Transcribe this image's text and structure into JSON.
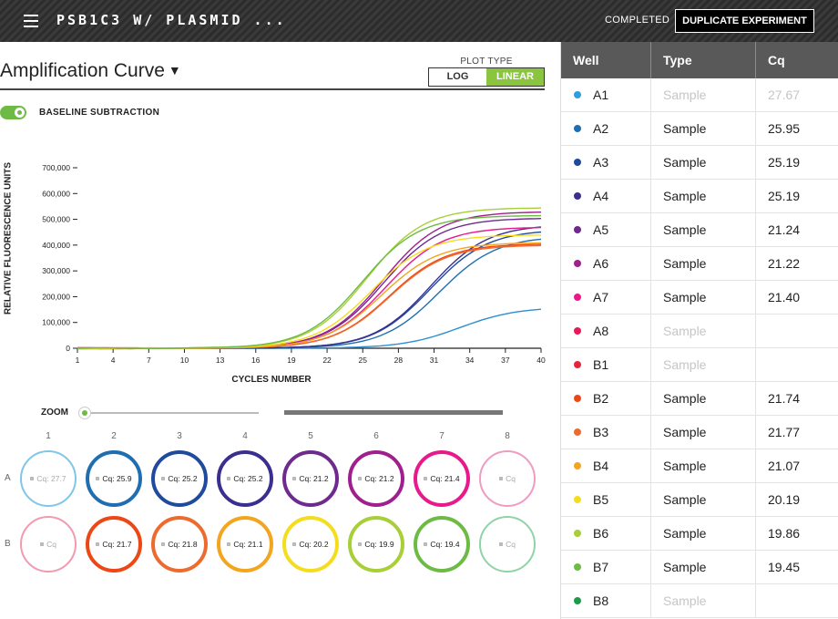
{
  "header": {
    "title": "PSB1C3 W/ PLASMID ...",
    "status": "COMPLETED",
    "duplicate_label": "DUPLICATE EXPERIMENT"
  },
  "chart_header": {
    "title": "Amplification Curve",
    "plot_type_label": "PLOT TYPE",
    "plot_options": [
      "LOG",
      "LINEAR"
    ],
    "selected_plot": "LINEAR",
    "baseline_label": "BASELINE SUBTRACTION",
    "baseline_on": true
  },
  "chart_data": {
    "type": "line",
    "title": "",
    "xlabel": "CYCLES NUMBER",
    "ylabel": "RELATIVE FLUORESCENCE UNITS",
    "xlim": [
      1,
      40
    ],
    "ylim": [
      0,
      700000
    ],
    "x_ticks": [
      1,
      4,
      7,
      10,
      13,
      16,
      19,
      22,
      25,
      28,
      31,
      34,
      37,
      40
    ],
    "y_ticks": [
      0,
      100000,
      200000,
      300000,
      400000,
      500000,
      600000,
      700000
    ],
    "y_tick_labels": [
      "0",
      "100,000",
      "200,000",
      "300,000",
      "400,000",
      "500,000",
      "600,000",
      "700,000"
    ],
    "series": [
      {
        "well": "A1",
        "color": "#2d8ed0",
        "cq": 27.67,
        "plateau": 160000
      },
      {
        "well": "A2",
        "color": "#1f6fb0",
        "cq": 25.95,
        "plateau": 435000
      },
      {
        "well": "A3",
        "color": "#1f4b9e",
        "cq": 25.19,
        "plateau": 460000
      },
      {
        "well": "A4",
        "color": "#3a2f8f",
        "cq": 25.19,
        "plateau": 480000
      },
      {
        "well": "A5",
        "color": "#6f2a8f",
        "cq": 21.24,
        "plateau": 505000
      },
      {
        "well": "A6",
        "color": "#a01f8f",
        "cq": 21.22,
        "plateau": 530000
      },
      {
        "well": "A7",
        "color": "#e8198b",
        "cq": 21.4,
        "plateau": 470000
      },
      {
        "well": "B2",
        "color": "#ee4716",
        "cq": 21.74,
        "plateau": 405000
      },
      {
        "well": "B3",
        "color": "#ee6b2f",
        "cq": 21.77,
        "plateau": 400000
      },
      {
        "well": "B4",
        "color": "#f3a51e",
        "cq": 21.07,
        "plateau": 410000
      },
      {
        "well": "B5",
        "color": "#f5dd1d",
        "cq": 20.19,
        "plateau": 440000
      },
      {
        "well": "B6",
        "color": "#a8cf38",
        "cq": 19.86,
        "plateau": 545000
      },
      {
        "well": "B7",
        "color": "#6dbb45",
        "cq": 19.45,
        "plateau": 515000
      }
    ]
  },
  "zoom": {
    "label": "ZOOM",
    "level": 0
  },
  "plate": {
    "columns": [
      "1",
      "2",
      "3",
      "4",
      "5",
      "6",
      "7",
      "8"
    ],
    "rows": [
      "A",
      "B"
    ],
    "wells": [
      {
        "id": "A1",
        "label": "Cq: 27.7",
        "color": "#7fc6ea",
        "faint": true
      },
      {
        "id": "A2",
        "label": "Cq: 25.9",
        "color": "#1f6fb0",
        "faint": false
      },
      {
        "id": "A3",
        "label": "Cq: 25.2",
        "color": "#1f4b9e",
        "faint": false
      },
      {
        "id": "A4",
        "label": "Cq: 25.2",
        "color": "#3a2f8f",
        "faint": false
      },
      {
        "id": "A5",
        "label": "Cq: 21.2",
        "color": "#6f2a8f",
        "faint": false
      },
      {
        "id": "A6",
        "label": "Cq: 21.2",
        "color": "#a01f8f",
        "faint": false
      },
      {
        "id": "A7",
        "label": "Cq: 21.4",
        "color": "#e8198b",
        "faint": false
      },
      {
        "id": "A8",
        "label": "Cq",
        "color": "#f19ac2",
        "faint": true
      },
      {
        "id": "B1",
        "label": "Cq",
        "color": "#f19ab0",
        "faint": true
      },
      {
        "id": "B2",
        "label": "Cq: 21.7",
        "color": "#ee4716",
        "faint": false
      },
      {
        "id": "B3",
        "label": "Cq: 21.8",
        "color": "#ee6b2f",
        "faint": false
      },
      {
        "id": "B4",
        "label": "Cq: 21.1",
        "color": "#f3a51e",
        "faint": false
      },
      {
        "id": "B5",
        "label": "Cq: 20.2",
        "color": "#f5dd1d",
        "faint": false
      },
      {
        "id": "B6",
        "label": "Cq: 19.9",
        "color": "#a8cf38",
        "faint": false
      },
      {
        "id": "B7",
        "label": "Cq: 19.4",
        "color": "#6dbb45",
        "faint": false
      },
      {
        "id": "B8",
        "label": "Cq",
        "color": "#8fd4a6",
        "faint": true
      }
    ]
  },
  "table": {
    "headers": [
      "Well",
      "Type",
      "Cq"
    ],
    "rows": [
      {
        "well": "A1",
        "type": "Sample",
        "cq": "27.67",
        "color": "#2d9fdc",
        "muted": true
      },
      {
        "well": "A2",
        "type": "Sample",
        "cq": "25.95",
        "color": "#1f6fb0",
        "muted": false
      },
      {
        "well": "A3",
        "type": "Sample",
        "cq": "25.19",
        "color": "#1f4b9e",
        "muted": false
      },
      {
        "well": "A4",
        "type": "Sample",
        "cq": "25.19",
        "color": "#3a2f8f",
        "muted": false
      },
      {
        "well": "A5",
        "type": "Sample",
        "cq": "21.24",
        "color": "#6f2a8f",
        "muted": false
      },
      {
        "well": "A6",
        "type": "Sample",
        "cq": "21.22",
        "color": "#a01f8f",
        "muted": false
      },
      {
        "well": "A7",
        "type": "Sample",
        "cq": "21.40",
        "color": "#e8198b",
        "muted": false
      },
      {
        "well": "A8",
        "type": "Sample",
        "cq": "",
        "color": "#e8195a",
        "muted": true
      },
      {
        "well": "B1",
        "type": "Sample",
        "cq": "",
        "color": "#e2263f",
        "muted": true
      },
      {
        "well": "B2",
        "type": "Sample",
        "cq": "21.74",
        "color": "#ee4716",
        "muted": false
      },
      {
        "well": "B3",
        "type": "Sample",
        "cq": "21.77",
        "color": "#ee6b2f",
        "muted": false
      },
      {
        "well": "B4",
        "type": "Sample",
        "cq": "21.07",
        "color": "#f3a51e",
        "muted": false
      },
      {
        "well": "B5",
        "type": "Sample",
        "cq": "20.19",
        "color": "#f5dd1d",
        "muted": false
      },
      {
        "well": "B6",
        "type": "Sample",
        "cq": "19.86",
        "color": "#a8cf38",
        "muted": false
      },
      {
        "well": "B7",
        "type": "Sample",
        "cq": "19.45",
        "color": "#6dbb45",
        "muted": false
      },
      {
        "well": "B8",
        "type": "Sample",
        "cq": "",
        "color": "#1e9a4b",
        "muted": true
      }
    ]
  }
}
